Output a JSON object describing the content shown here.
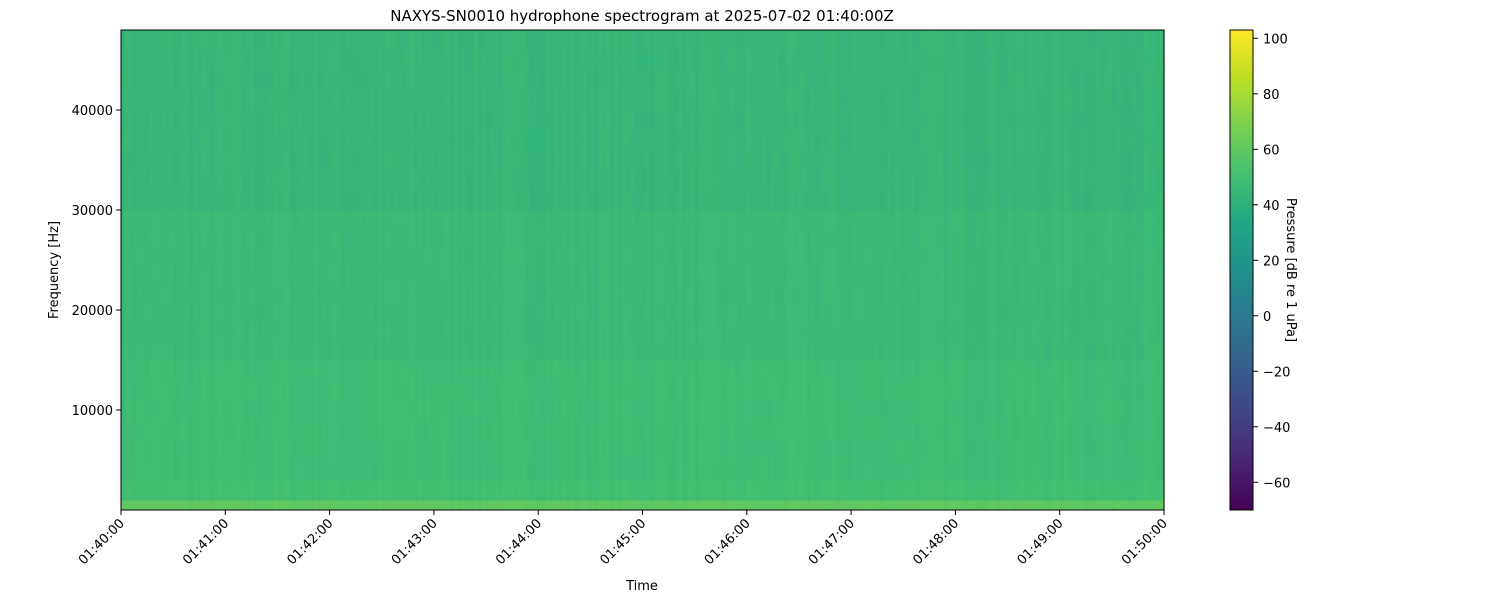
{
  "chart_data": {
    "type": "heatmap",
    "title": "NAXYS-SN0010 hydrophone spectrogram at 2025-07-02 01:40:00Z",
    "xlabel": "Time",
    "ylabel": "Frequency [Hz]",
    "x_ticks": [
      "01:40:00",
      "01:41:00",
      "01:42:00",
      "01:43:00",
      "01:44:00",
      "01:45:00",
      "01:46:00",
      "01:47:00",
      "01:48:00",
      "01:49:00",
      "01:50:00"
    ],
    "xlim": [
      "01:40:00",
      "01:50:00"
    ],
    "y_ticks": [
      10000,
      20000,
      30000,
      40000
    ],
    "ylim": [
      0,
      48000
    ],
    "colormap": "viridis",
    "colorbar": {
      "label": "Pressure [dB re 1 uPa]",
      "ticks": [
        100,
        80,
        60,
        40,
        20,
        0,
        -20,
        -40,
        -60
      ],
      "range": [
        -70,
        103
      ]
    },
    "bands_mean_db": [
      {
        "freq_from": 0,
        "freq_to": 1000,
        "level_db": 60
      },
      {
        "freq_from": 1000,
        "freq_to": 3000,
        "level_db": 50
      },
      {
        "freq_from": 3000,
        "freq_to": 15000,
        "level_db": 48
      },
      {
        "freq_from": 15000,
        "freq_to": 30000,
        "level_db": 46
      },
      {
        "freq_from": 30000,
        "freq_to": 48000,
        "level_db": 44
      }
    ],
    "grid": false
  }
}
